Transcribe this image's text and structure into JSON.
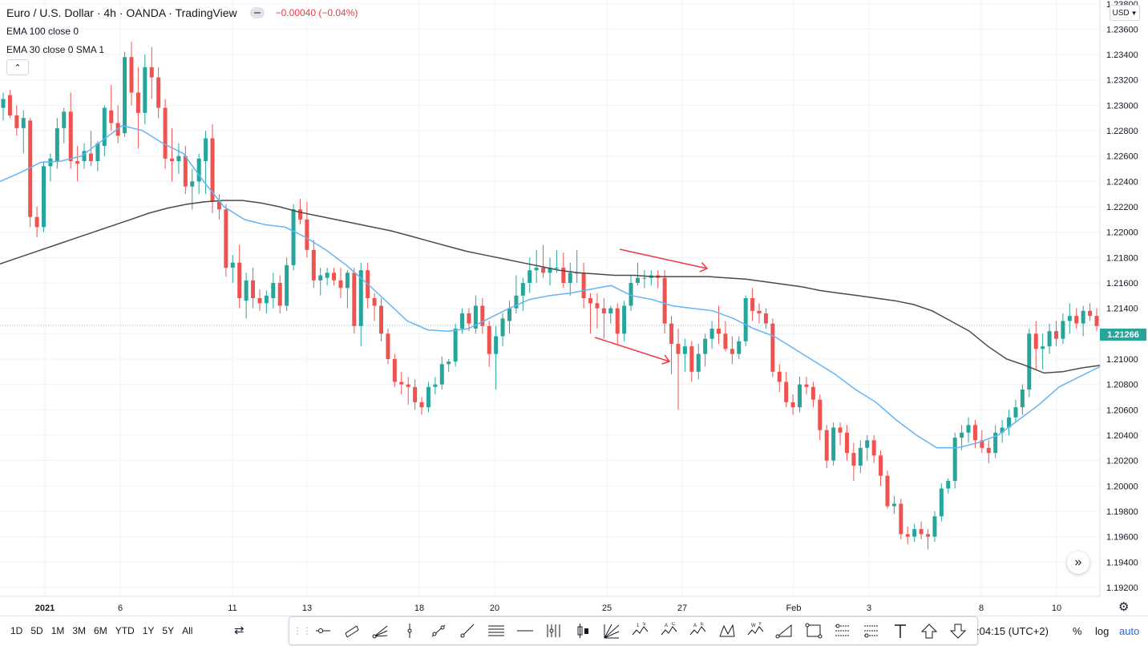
{
  "header": {
    "symbol_title": "Euro / U.S. Dollar · 4h · OANDA · TradingView",
    "change": "−0.00040 (−0.04%)"
  },
  "indicators": [
    {
      "label": "EMA 100 close 0"
    },
    {
      "label": "EMA 30 close 0 SMA 1"
    }
  ],
  "collapse_icon": "chevron-up-icon",
  "currency_selector": "USD",
  "last_price": "1.21266",
  "colors": {
    "up": "#26a69a",
    "down": "#ef5350",
    "ema100": "#4a4a4a",
    "ema30": "#64b5f6",
    "arrow": "#f23645",
    "grid": "#f0f3fa"
  },
  "bottom_bar": {
    "ranges": [
      "1D",
      "5D",
      "1M",
      "3M",
      "6M",
      "YTD",
      "1Y",
      "5Y",
      "All"
    ],
    "time": ":04:15 (UTC+2)",
    "percent": "%",
    "log": "log",
    "auto": "auto"
  },
  "toolbar_tools": [
    "horizontal-ray-icon",
    "parallel-channel-icon",
    "pitchfork-icon",
    "vertical-line-icon",
    "trend-line-icon",
    "ray-icon",
    "fib-icon",
    "horizontal-line-icon",
    "gann-icon",
    "candle-icon",
    "fan-icon",
    "elliott-impulse-icon",
    "abcd-pattern-icon",
    "elliott-triangle-icon",
    "xabcd-pattern-icon",
    "wave-pattern-icon",
    "triangle-pattern-icon",
    "rectangle-icon",
    "long-position-icon",
    "short-position-icon",
    "text-icon",
    "arrow-up-icon",
    "arrow-down-icon"
  ],
  "chart_data": {
    "type": "candlestick",
    "title": "Euro / U.S. Dollar · 4h · OANDA · TradingView",
    "y_axis_ticks": [
      "1.23800",
      "1.23600",
      "1.23400",
      "1.23200",
      "1.23000",
      "1.22800",
      "1.22600",
      "1.22400",
      "1.22200",
      "1.22000",
      "1.21800",
      "1.21600",
      "1.21400",
      "1.21200",
      "1.21000",
      "1.20800",
      "1.20600",
      "1.20400",
      "1.20200",
      "1.20000",
      "1.19800",
      "1.19600",
      "1.19400",
      "1.19200"
    ],
    "ylim": [
      1.1913,
      1.2383
    ],
    "x_axis_ticks": [
      "2021",
      "6",
      "11",
      "13",
      "18",
      "20",
      "25",
      "27",
      "Feb",
      "3",
      "8",
      "10"
    ],
    "series": [
      {
        "name": "EMA 100 close 0"
      },
      {
        "name": "EMA 30 close 0 SMA 1"
      }
    ],
    "candles": [
      [
        1.2298,
        1.231,
        1.2288,
        1.2305
      ],
      [
        1.2308,
        1.2312,
        1.229,
        1.2292
      ],
      [
        1.2292,
        1.23,
        1.2276,
        1.2282
      ],
      [
        1.2282,
        1.2296,
        1.2262,
        1.229
      ],
      [
        1.2288,
        1.229,
        1.2204,
        1.2212
      ],
      [
        1.2212,
        1.222,
        1.2196,
        1.2204
      ],
      [
        1.2204,
        1.2256,
        1.22,
        1.2252
      ],
      [
        1.2252,
        1.2262,
        1.224,
        1.2258
      ],
      [
        1.2256,
        1.229,
        1.225,
        1.2282
      ],
      [
        1.2282,
        1.2298,
        1.227,
        1.2295
      ],
      [
        1.2295,
        1.231,
        1.225,
        1.2256
      ],
      [
        1.2256,
        1.2268,
        1.224,
        1.2254
      ],
      [
        1.2256,
        1.227,
        1.225,
        1.2264
      ],
      [
        1.2262,
        1.228,
        1.2252,
        1.2256
      ],
      [
        1.2256,
        1.2272,
        1.2248,
        1.227
      ],
      [
        1.2268,
        1.23,
        1.226,
        1.2298
      ],
      [
        1.2296,
        1.2316,
        1.228,
        1.2286
      ],
      [
        1.2286,
        1.23,
        1.227,
        1.2276
      ],
      [
        1.2278,
        1.2342,
        1.2275,
        1.2338
      ],
      [
        1.2338,
        1.235,
        1.23,
        1.231
      ],
      [
        1.231,
        1.233,
        1.2266,
        1.2294
      ],
      [
        1.2294,
        1.234,
        1.2285,
        1.233
      ],
      [
        1.233,
        1.2346,
        1.2305,
        1.2322
      ],
      [
        1.2322,
        1.233,
        1.229,
        1.2298
      ],
      [
        1.2298,
        1.2305,
        1.225,
        1.2258
      ],
      [
        1.2258,
        1.2282,
        1.224,
        1.2256
      ],
      [
        1.2256,
        1.227,
        1.2246,
        1.226
      ],
      [
        1.226,
        1.2268,
        1.223,
        1.2236
      ],
      [
        1.2236,
        1.225,
        1.2218,
        1.224
      ],
      [
        1.224,
        1.2262,
        1.223,
        1.2258
      ],
      [
        1.2256,
        1.228,
        1.223,
        1.2274
      ],
      [
        1.2274,
        1.2285,
        1.2215,
        1.2224
      ],
      [
        1.2224,
        1.223,
        1.221,
        1.2218
      ],
      [
        1.2218,
        1.2222,
        1.2165,
        1.2172
      ],
      [
        1.2172,
        1.2182,
        1.216,
        1.2176
      ],
      [
        1.2176,
        1.219,
        1.214,
        1.2148
      ],
      [
        1.2146,
        1.2168,
        1.2132,
        1.2162
      ],
      [
        1.2162,
        1.2172,
        1.214,
        1.2148
      ],
      [
        1.2148,
        1.2155,
        1.2138,
        1.2144
      ],
      [
        1.2144,
        1.2154,
        1.2136,
        1.215
      ],
      [
        1.2148,
        1.2168,
        1.214,
        1.216
      ],
      [
        1.216,
        1.2166,
        1.2136,
        1.2142
      ],
      [
        1.2142,
        1.218,
        1.2138,
        1.2174
      ],
      [
        1.2174,
        1.2222,
        1.217,
        1.2218
      ],
      [
        1.2218,
        1.2226,
        1.2206,
        1.221
      ],
      [
        1.221,
        1.2224,
        1.218,
        1.2186
      ],
      [
        1.2186,
        1.2194,
        1.2156,
        1.2162
      ],
      [
        1.2162,
        1.2172,
        1.215,
        1.2166
      ],
      [
        1.2164,
        1.2172,
        1.2158,
        1.2168
      ],
      [
        1.2168,
        1.2172,
        1.2158,
        1.2162
      ],
      [
        1.2162,
        1.2172,
        1.2148,
        1.2156
      ],
      [
        1.2156,
        1.217,
        1.214,
        1.2168
      ],
      [
        1.2168,
        1.2172,
        1.212,
        1.2126
      ],
      [
        1.2126,
        1.2176,
        1.211,
        1.217
      ],
      [
        1.217,
        1.2176,
        1.214,
        1.2148
      ],
      [
        1.2148,
        1.2152,
        1.213,
        1.2142
      ],
      [
        1.2142,
        1.2148,
        1.2114,
        1.212
      ],
      [
        1.212,
        1.2124,
        1.2096,
        1.21
      ],
      [
        1.21,
        1.2104,
        1.2078,
        1.2082
      ],
      [
        1.2082,
        1.209,
        1.2072,
        1.208
      ],
      [
        1.208,
        1.2086,
        1.2064,
        1.2078
      ],
      [
        1.2078,
        1.2084,
        1.206,
        1.2066
      ],
      [
        1.2066,
        1.207,
        1.2056,
        1.2062
      ],
      [
        1.2062,
        1.2082,
        1.2058,
        1.2078
      ],
      [
        1.2078,
        1.2086,
        1.2072,
        1.208
      ],
      [
        1.208,
        1.2102,
        1.2076,
        1.2096
      ],
      [
        1.2096,
        1.21,
        1.209,
        1.2098
      ],
      [
        1.2098,
        1.2128,
        1.2094,
        1.2124
      ],
      [
        1.2124,
        1.214,
        1.212,
        1.2136
      ],
      [
        1.2136,
        1.214,
        1.2122,
        1.2128
      ],
      [
        1.2124,
        1.215,
        1.212,
        1.2142
      ],
      [
        1.2142,
        1.2148,
        1.212,
        1.2126
      ],
      [
        1.2126,
        1.213,
        1.2094,
        1.2104
      ],
      [
        1.2104,
        1.2126,
        1.2076,
        1.2118
      ],
      [
        1.2118,
        1.2136,
        1.211,
        1.2132
      ],
      [
        1.213,
        1.2146,
        1.212,
        1.214
      ],
      [
        1.214,
        1.2166,
        1.2136,
        1.215
      ],
      [
        1.215,
        1.2164,
        1.2138,
        1.216
      ],
      [
        1.216,
        1.218,
        1.2152,
        1.217
      ],
      [
        1.217,
        1.2186,
        1.216,
        1.2172
      ],
      [
        1.2172,
        1.219,
        1.2164,
        1.2168
      ],
      [
        1.2168,
        1.218,
        1.2158,
        1.2172
      ],
      [
        1.2172,
        1.2186,
        1.2168,
        1.2172
      ],
      [
        1.2172,
        1.2184,
        1.2156,
        1.216
      ],
      [
        1.216,
        1.2176,
        1.215,
        1.2168
      ],
      [
        1.2168,
        1.2186,
        1.216,
        1.2168
      ],
      [
        1.2168,
        1.2176,
        1.214,
        1.2148
      ],
      [
        1.2148,
        1.2152,
        1.212,
        1.2144
      ],
      [
        1.2144,
        1.2152,
        1.2124,
        1.214
      ],
      [
        1.214,
        1.2148,
        1.2116,
        1.2136
      ],
      [
        1.2136,
        1.2142,
        1.2128,
        1.214
      ],
      [
        1.214,
        1.2144,
        1.2112,
        1.212
      ],
      [
        1.212,
        1.2146,
        1.2114,
        1.2142
      ],
      [
        1.2142,
        1.2166,
        1.2138,
        1.216
      ],
      [
        1.216,
        1.2176,
        1.2158,
        1.2164
      ],
      [
        1.2164,
        1.217,
        1.2156,
        1.2164
      ],
      [
        1.2164,
        1.217,
        1.2158,
        1.2166
      ],
      [
        1.2166,
        1.217,
        1.2156,
        1.2164
      ],
      [
        1.2164,
        1.217,
        1.212,
        1.2128
      ],
      [
        1.2128,
        1.2134,
        1.2088,
        1.2112
      ],
      [
        1.2112,
        1.2124,
        1.206,
        1.2104
      ],
      [
        1.2104,
        1.2116,
        1.209,
        1.211
      ],
      [
        1.211,
        1.2114,
        1.2082,
        1.209
      ],
      [
        1.209,
        1.2112,
        1.2084,
        1.2104
      ],
      [
        1.2104,
        1.212,
        1.2094,
        1.2116
      ],
      [
        1.2116,
        1.213,
        1.2108,
        1.2124
      ],
      [
        1.2124,
        1.2142,
        1.2112,
        1.212
      ],
      [
        1.212,
        1.213,
        1.2106,
        1.2108
      ],
      [
        1.2108,
        1.2118,
        1.2096,
        1.2104
      ],
      [
        1.2104,
        1.2118,
        1.21,
        1.2114
      ],
      [
        1.2114,
        1.215,
        1.211,
        1.2148
      ],
      [
        1.2148,
        1.2156,
        1.213,
        1.2138
      ],
      [
        1.2138,
        1.2144,
        1.2128,
        1.2136
      ],
      [
        1.2136,
        1.214,
        1.2124,
        1.2128
      ],
      [
        1.2128,
        1.2132,
        1.2086,
        1.209
      ],
      [
        1.209,
        1.2096,
        1.2074,
        1.2082
      ],
      [
        1.2082,
        1.209,
        1.2062,
        1.2066
      ],
      [
        1.2066,
        1.2072,
        1.2056,
        1.2062
      ],
      [
        1.2062,
        1.2086,
        1.2058,
        1.208
      ],
      [
        1.208,
        1.2086,
        1.2072,
        1.2078
      ],
      [
        1.2078,
        1.2082,
        1.2062,
        1.2068
      ],
      [
        1.2068,
        1.2072,
        1.2036,
        1.2044
      ],
      [
        1.2044,
        1.2048,
        1.2014,
        1.202
      ],
      [
        1.202,
        1.205,
        1.2016,
        1.2046
      ],
      [
        1.2046,
        1.205,
        1.2032,
        1.2042
      ],
      [
        1.2042,
        1.2048,
        1.202,
        1.2026
      ],
      [
        1.2026,
        1.2034,
        1.2004,
        1.2016
      ],
      [
        1.2016,
        1.2036,
        1.201,
        1.203
      ],
      [
        1.203,
        1.204,
        1.202,
        1.2036
      ],
      [
        1.2036,
        1.204,
        1.2018,
        1.2024
      ],
      [
        1.2024,
        1.2028,
        1.2,
        1.2008
      ],
      [
        1.2008,
        1.2012,
        1.1982,
        1.1984
      ],
      [
        1.1984,
        1.1992,
        1.1978,
        1.1986
      ],
      [
        1.1986,
        1.199,
        1.1958,
        1.1962
      ],
      [
        1.1962,
        1.1968,
        1.1954,
        1.196
      ],
      [
        1.196,
        1.197,
        1.1956,
        1.1966
      ],
      [
        1.1966,
        1.1972,
        1.1958,
        1.1962
      ],
      [
        1.1962,
        1.1966,
        1.195,
        1.196
      ],
      [
        1.196,
        1.198,
        1.1956,
        1.1976
      ],
      [
        1.1976,
        1.2002,
        1.1972,
        1.1998
      ],
      [
        1.1998,
        1.2006,
        1.1994,
        1.2004
      ],
      [
        1.2004,
        1.2042,
        1.1998,
        1.2038
      ],
      [
        1.2038,
        1.2048,
        1.2028,
        1.2042
      ],
      [
        1.2042,
        1.2054,
        1.2034,
        1.2048
      ],
      [
        1.2048,
        1.2052,
        1.203,
        1.2036
      ],
      [
        1.2036,
        1.2044,
        1.2026,
        1.203
      ],
      [
        1.203,
        1.2036,
        1.2018,
        1.2026
      ],
      [
        1.2026,
        1.2048,
        1.2022,
        1.2042
      ],
      [
        1.2042,
        1.2052,
        1.2034,
        1.2046
      ],
      [
        1.2046,
        1.206,
        1.204,
        1.2054
      ],
      [
        1.2054,
        1.2068,
        1.205,
        1.2062
      ],
      [
        1.2062,
        1.208,
        1.2056,
        1.2076
      ],
      [
        1.2076,
        1.2124,
        1.207,
        1.212
      ],
      [
        1.212,
        1.213,
        1.2092,
        1.2108
      ],
      [
        1.2108,
        1.212,
        1.2092,
        1.211
      ],
      [
        1.211,
        1.2128,
        1.2104,
        1.2122
      ],
      [
        1.2122,
        1.213,
        1.211,
        1.2116
      ],
      [
        1.2116,
        1.2136,
        1.2112,
        1.213
      ],
      [
        1.213,
        1.2144,
        1.212,
        1.2134
      ],
      [
        1.2134,
        1.214,
        1.2124,
        1.2128
      ],
      [
        1.2128,
        1.2142,
        1.2118,
        1.2138
      ],
      [
        1.2138,
        1.2144,
        1.213,
        1.2134
      ],
      [
        1.2134,
        1.214,
        1.2122,
        1.2126
      ]
    ],
    "ema100": [
      1.2175,
      1.218,
      1.2185,
      1.219,
      1.2195,
      1.22,
      1.2205,
      1.221,
      1.2215,
      1.2219,
      1.2222,
      1.2224,
      1.2225,
      1.2225,
      1.2223,
      1.222,
      1.2216,
      1.2213,
      1.221,
      1.2207,
      1.2204,
      1.2201,
      1.2197,
      1.2193,
      1.2189,
      1.2185,
      1.2182,
      1.2179,
      1.2176,
      1.2173,
      1.217,
      1.2168,
      1.2167,
      1.2166,
      1.2166,
      1.2165,
      1.2165,
      1.2165,
      1.2165,
      1.2164,
      1.2163,
      1.2161,
      1.2159,
      1.2157,
      1.2154,
      1.2152,
      1.215,
      1.2148,
      1.2146,
      1.2143,
      1.2138,
      1.213,
      1.2122,
      1.211,
      1.21,
      1.2095,
      1.2089,
      1.209,
      1.2093,
      1.2095
    ],
    "ema30": [
      1.224,
      1.2247,
      1.2255,
      1.2256,
      1.226,
      1.2272,
      1.2284,
      1.228,
      1.227,
      1.2262,
      1.224,
      1.222,
      1.221,
      1.2206,
      1.2204,
      1.2196,
      1.2186,
      1.2174,
      1.216,
      1.2145,
      1.213,
      1.2123,
      1.2122,
      1.2124,
      1.2132,
      1.214,
      1.2147,
      1.215,
      1.2152,
      1.2155,
      1.2158,
      1.215,
      1.2147,
      1.2142,
      1.214,
      1.2138,
      1.2132,
      1.2124,
      1.2118,
      1.2108,
      1.2098,
      1.2088,
      1.2076,
      1.2066,
      1.2052,
      1.204,
      1.203,
      1.203,
      1.2034,
      1.204,
      1.2052,
      1.2064,
      1.2078,
      1.2086,
      1.2094
    ],
    "annotations": [
      {
        "type": "arrow",
        "description": "upper red arrow",
        "label": ""
      },
      {
        "type": "arrow",
        "description": "lower red arrow",
        "label": ""
      }
    ]
  }
}
